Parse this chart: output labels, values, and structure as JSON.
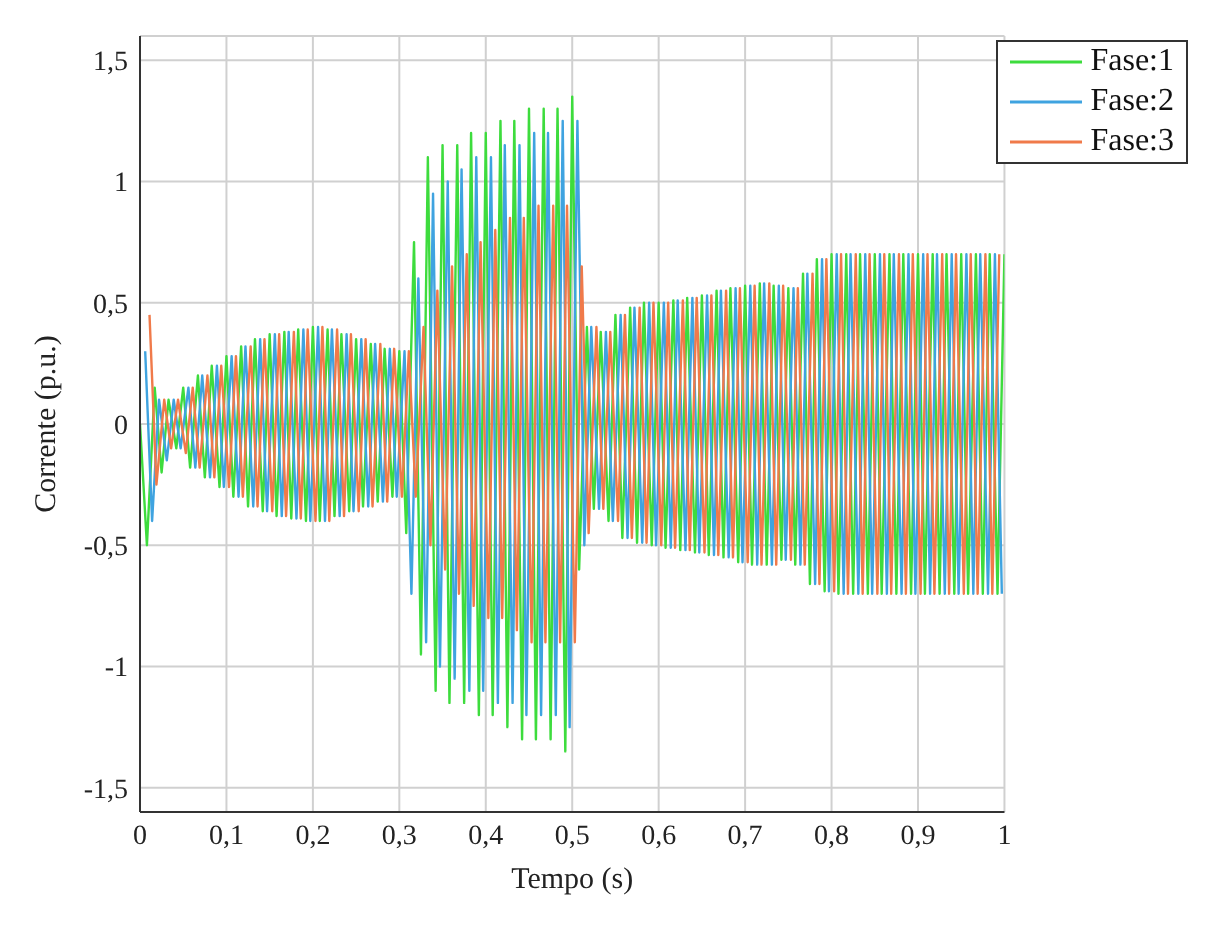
{
  "chart_data": {
    "type": "line",
    "xlabel": "Tempo (s)",
    "ylabel": "Corrente (p.u.)",
    "xlim": [
      0,
      1
    ],
    "xticks": [
      0,
      {
        "value": 0.1,
        "label": "0,1"
      },
      {
        "value": 0.2,
        "label": "0,2"
      },
      {
        "value": 0.3,
        "label": "0,3"
      },
      {
        "value": 0.4,
        "label": "0,4"
      },
      {
        "value": 0.5,
        "label": "0,5"
      },
      {
        "value": 0.6,
        "label": "0,6"
      },
      {
        "value": 0.7,
        "label": "0,7"
      },
      {
        "value": 0.8,
        "label": "0,8"
      },
      {
        "value": 0.9,
        "label": "0,9"
      },
      1
    ],
    "ylim": [
      -1.6,
      1.6
    ],
    "yticks": [
      {
        "value": -1.5,
        "label": "-1,5"
      },
      -1,
      {
        "value": -0.5,
        "label": "-0,5"
      },
      0,
      {
        "value": 0.5,
        "label": "0,5"
      },
      1,
      {
        "value": 1.5,
        "label": "1,5"
      }
    ],
    "grid": true,
    "legend": "top right",
    "series": [
      {
        "name": "Fase:1",
        "color": "#3ddc3d",
        "x": [
          0,
          0.008,
          0.017,
          0.025,
          0.033,
          0.042,
          0.05,
          0.058,
          0.067,
          0.075,
          0.083,
          0.092,
          0.1,
          0.108,
          0.117,
          0.125,
          0.133,
          0.142,
          0.15,
          0.158,
          0.167,
          0.175,
          0.183,
          0.192,
          0.2,
          0.208,
          0.217,
          0.225,
          0.233,
          0.242,
          0.25,
          0.258,
          0.267,
          0.275,
          0.283,
          0.292,
          0.3,
          0.308,
          0.317,
          0.325,
          0.333,
          0.342,
          0.35,
          0.358,
          0.367,
          0.375,
          0.383,
          0.392,
          0.4,
          0.408,
          0.417,
          0.425,
          0.433,
          0.442,
          0.45,
          0.458,
          0.467,
          0.475,
          0.483,
          0.492,
          0.5,
          0.508,
          0.517,
          0.525,
          0.533,
          0.542,
          0.55,
          0.558,
          0.567,
          0.575,
          0.583,
          0.592,
          0.6,
          0.608,
          0.617,
          0.625,
          0.633,
          0.642,
          0.65,
          0.658,
          0.667,
          0.675,
          0.683,
          0.692,
          0.7,
          0.708,
          0.717,
          0.725,
          0.733,
          0.742,
          0.75,
          0.758,
          0.767,
          0.775,
          0.783,
          0.792,
          0.8,
          0.808,
          0.817,
          0.825,
          0.833,
          0.842,
          0.85,
          0.858,
          0.867,
          0.875,
          0.883,
          0.892,
          0.9,
          0.908,
          0.917,
          0.925,
          0.933,
          0.942,
          0.95,
          0.958,
          0.967,
          0.975,
          0.983,
          0.992,
          1
        ],
        "values": [
          0,
          -0.5,
          0.15,
          -0.2,
          0.1,
          -0.1,
          0.15,
          -0.18,
          0.2,
          -0.22,
          0.24,
          -0.26,
          0.28,
          -0.3,
          0.32,
          -0.34,
          0.35,
          -0.36,
          0.37,
          -0.38,
          0.38,
          -0.39,
          0.39,
          -0.4,
          0.4,
          -0.4,
          0.39,
          -0.38,
          0.37,
          -0.36,
          0.35,
          -0.34,
          0.33,
          -0.32,
          0.31,
          -0.3,
          0.3,
          -0.45,
          0.75,
          -0.95,
          1.1,
          -1.1,
          1.15,
          -1.15,
          1.15,
          -1.15,
          1.2,
          -1.2,
          1.2,
          -1.2,
          1.25,
          -1.25,
          1.25,
          -1.3,
          1.3,
          -1.3,
          1.3,
          -1.3,
          1.3,
          -1.35,
          1.35,
          -0.6,
          0.4,
          -0.35,
          0.38,
          -0.4,
          0.45,
          -0.47,
          0.48,
          -0.49,
          0.5,
          -0.5,
          0.5,
          -0.51,
          0.51,
          -0.52,
          0.52,
          -0.53,
          0.53,
          -0.54,
          0.55,
          -0.55,
          0.56,
          -0.57,
          0.57,
          -0.58,
          0.58,
          -0.58,
          0.57,
          -0.56,
          0.56,
          -0.58,
          0.62,
          -0.66,
          0.68,
          -0.69,
          0.7,
          -0.7,
          0.7,
          -0.7,
          0.7,
          -0.7,
          0.7,
          -0.7,
          0.7,
          -0.7,
          0.7,
          -0.7,
          0.7,
          -0.7,
          0.7,
          -0.7,
          0.7,
          -0.7,
          0.7,
          -0.7,
          0.7,
          -0.7,
          0.7,
          -0.7,
          0.7
        ]
      },
      {
        "name": "Fase:2",
        "color": "#3fa3e0",
        "x": [
          0.006,
          0.014,
          0.022,
          0.031,
          0.039,
          0.047,
          0.056,
          0.064,
          0.072,
          0.081,
          0.089,
          0.097,
          0.106,
          0.114,
          0.122,
          0.131,
          0.139,
          0.147,
          0.156,
          0.164,
          0.172,
          0.181,
          0.189,
          0.197,
          0.206,
          0.214,
          0.222,
          0.231,
          0.239,
          0.247,
          0.256,
          0.264,
          0.272,
          0.281,
          0.289,
          0.297,
          0.306,
          0.314,
          0.322,
          0.331,
          0.339,
          0.347,
          0.356,
          0.364,
          0.372,
          0.381,
          0.389,
          0.397,
          0.406,
          0.414,
          0.422,
          0.431,
          0.439,
          0.447,
          0.456,
          0.464,
          0.472,
          0.481,
          0.489,
          0.497,
          0.506,
          0.514,
          0.522,
          0.531,
          0.539,
          0.547,
          0.556,
          0.564,
          0.572,
          0.581,
          0.589,
          0.597,
          0.606,
          0.614,
          0.622,
          0.631,
          0.639,
          0.647,
          0.656,
          0.664,
          0.672,
          0.681,
          0.689,
          0.697,
          0.706,
          0.714,
          0.722,
          0.731,
          0.739,
          0.747,
          0.756,
          0.764,
          0.772,
          0.781,
          0.789,
          0.797,
          0.806,
          0.814,
          0.822,
          0.831,
          0.839,
          0.847,
          0.856,
          0.864,
          0.872,
          0.881,
          0.889,
          0.897,
          0.906,
          0.914,
          0.922,
          0.931,
          0.939,
          0.947,
          0.956,
          0.964,
          0.972,
          0.981,
          0.989,
          0.997
        ],
        "values": [
          0.3,
          -0.4,
          0.1,
          -0.15,
          0.1,
          -0.1,
          0.15,
          -0.18,
          0.2,
          -0.22,
          0.24,
          -0.26,
          0.28,
          -0.3,
          0.32,
          -0.34,
          0.35,
          -0.36,
          0.37,
          -0.38,
          0.38,
          -0.39,
          0.39,
          -0.4,
          0.4,
          -0.4,
          0.39,
          -0.38,
          0.37,
          -0.36,
          0.35,
          -0.34,
          0.33,
          -0.32,
          0.31,
          -0.3,
          0.3,
          -0.7,
          0.6,
          -0.9,
          0.95,
          -1,
          1,
          -1.05,
          1.05,
          -1.1,
          1.1,
          -1.1,
          1.1,
          -1.15,
          1.15,
          -1.15,
          1.15,
          -1.2,
          1.2,
          -1.2,
          1.2,
          -1.2,
          1.25,
          -1.25,
          1.25,
          -0.5,
          0.4,
          -0.35,
          0.38,
          -0.4,
          0.45,
          -0.47,
          0.48,
          -0.49,
          0.5,
          -0.5,
          0.5,
          -0.51,
          0.51,
          -0.52,
          0.52,
          -0.53,
          0.53,
          -0.54,
          0.55,
          -0.55,
          0.56,
          -0.57,
          0.57,
          -0.58,
          0.58,
          -0.58,
          0.57,
          -0.56,
          0.56,
          -0.58,
          0.62,
          -0.66,
          0.68,
          -0.69,
          0.7,
          -0.7,
          0.7,
          -0.7,
          0.7,
          -0.7,
          0.7,
          -0.7,
          0.7,
          -0.7,
          0.7,
          -0.7,
          0.7,
          -0.7,
          0.7,
          -0.7,
          0.7,
          -0.7,
          0.7,
          -0.7,
          0.7,
          -0.7,
          0.7,
          -0.7
        ]
      },
      {
        "name": "Fase:3",
        "color": "#f07a4a",
        "x": [
          0.011,
          0.019,
          0.028,
          0.036,
          0.044,
          0.053,
          0.061,
          0.069,
          0.078,
          0.086,
          0.094,
          0.103,
          0.111,
          0.119,
          0.128,
          0.136,
          0.144,
          0.153,
          0.161,
          0.169,
          0.178,
          0.186,
          0.194,
          0.203,
          0.211,
          0.219,
          0.228,
          0.236,
          0.244,
          0.253,
          0.261,
          0.269,
          0.278,
          0.286,
          0.294,
          0.303,
          0.311,
          0.319,
          0.328,
          0.336,
          0.344,
          0.353,
          0.361,
          0.369,
          0.378,
          0.386,
          0.394,
          0.403,
          0.411,
          0.419,
          0.428,
          0.436,
          0.444,
          0.453,
          0.461,
          0.469,
          0.478,
          0.486,
          0.494,
          0.503,
          0.511,
          0.519,
          0.528,
          0.536,
          0.544,
          0.553,
          0.561,
          0.569,
          0.578,
          0.586,
          0.594,
          0.603,
          0.611,
          0.619,
          0.628,
          0.636,
          0.644,
          0.653,
          0.661,
          0.669,
          0.678,
          0.686,
          0.694,
          0.703,
          0.711,
          0.719,
          0.728,
          0.736,
          0.744,
          0.753,
          0.761,
          0.769,
          0.778,
          0.786,
          0.794,
          0.803,
          0.811,
          0.819,
          0.828,
          0.836,
          0.844,
          0.853,
          0.861,
          0.869,
          0.878,
          0.886,
          0.894,
          0.903,
          0.911,
          0.919,
          0.928,
          0.936,
          0.944,
          0.953,
          0.961,
          0.969,
          0.978,
          0.986,
          0.994
        ],
        "values": [
          0.45,
          -0.25,
          0.1,
          -0.1,
          0.1,
          -0.12,
          0.15,
          -0.18,
          0.2,
          -0.22,
          0.24,
          -0.26,
          0.28,
          -0.3,
          0.32,
          -0.34,
          0.35,
          -0.36,
          0.37,
          -0.38,
          0.38,
          -0.39,
          0.39,
          -0.4,
          0.4,
          -0.4,
          0.39,
          -0.38,
          0.37,
          -0.36,
          0.35,
          -0.34,
          0.33,
          -0.32,
          0.31,
          -0.3,
          0.3,
          -0.3,
          0.4,
          -0.5,
          0.55,
          -0.6,
          0.65,
          -0.7,
          0.7,
          -0.75,
          0.75,
          -0.8,
          0.8,
          -0.8,
          0.85,
          -0.85,
          0.85,
          -0.9,
          0.9,
          -0.9,
          0.9,
          -0.9,
          0.9,
          -0.9,
          0.65,
          -0.45,
          0.4,
          -0.35,
          0.38,
          -0.4,
          0.45,
          -0.47,
          0.48,
          -0.49,
          0.5,
          -0.5,
          0.5,
          -0.51,
          0.51,
          -0.52,
          0.52,
          -0.53,
          0.53,
          -0.54,
          0.55,
          -0.55,
          0.56,
          -0.57,
          0.57,
          -0.58,
          0.58,
          -0.58,
          0.57,
          -0.56,
          0.56,
          -0.58,
          0.62,
          -0.66,
          0.68,
          -0.69,
          0.7,
          -0.7,
          0.7,
          -0.7,
          0.7,
          -0.7,
          0.7,
          -0.7,
          0.7,
          -0.7,
          0.7,
          -0.7,
          0.7,
          -0.7,
          0.7,
          -0.7,
          0.7,
          -0.7,
          0.7,
          -0.7,
          0.7,
          -0.7,
          0.7
        ]
      }
    ]
  }
}
